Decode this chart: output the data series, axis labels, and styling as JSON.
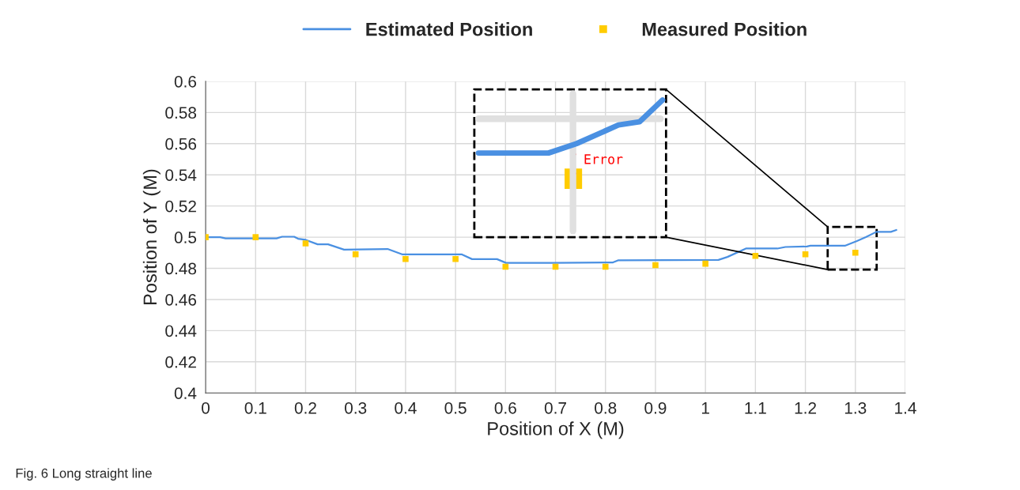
{
  "chart_data": {
    "type": "line",
    "xlabel": "Position of X (M)",
    "ylabel": "Position of Y (M)",
    "series": [
      {
        "name": "Estimated Position",
        "color": "#4a90e2",
        "marker": "none",
        "line_style": "solid",
        "x": [
          0,
          0.029,
          0.04,
          0.142,
          0.153,
          0.177,
          0.185,
          0.2,
          0.224,
          0.245,
          0.277,
          0.364,
          0.393,
          0.512,
          0.533,
          0.583,
          0.601,
          0.696,
          0.815,
          0.825,
          1.026,
          1.044,
          1.081,
          1.144,
          1.16,
          1.203,
          1.21,
          1.279,
          1.303,
          1.321,
          1.342,
          1.371,
          1.382
        ],
        "values": [
          0.5,
          0.5,
          0.4992,
          0.4992,
          0.5003,
          0.5003,
          0.499,
          0.4983,
          0.4954,
          0.4954,
          0.492,
          0.4924,
          0.489,
          0.489,
          0.4859,
          0.4859,
          0.4835,
          0.4835,
          0.4838,
          0.4851,
          0.4854,
          0.4873,
          0.4927,
          0.4927,
          0.4937,
          0.494,
          0.4945,
          0.4945,
          0.4975,
          0.5,
          0.5034,
          0.5034,
          0.5046
        ]
      },
      {
        "name": "Measured Position",
        "type": "scatter",
        "color": "#ffcc00",
        "marker": "square",
        "x": [
          0,
          0.1,
          0.2,
          0.3,
          0.4,
          0.5,
          0.6,
          0.7,
          0.8,
          0.9,
          1.0,
          1.1,
          1.2,
          1.3
        ],
        "values": [
          0.5,
          0.5,
          0.496,
          0.489,
          0.486,
          0.486,
          0.481,
          0.481,
          0.481,
          0.482,
          0.483,
          0.488,
          0.489,
          0.49
        ]
      }
    ],
    "xlim": [
      0,
      1.4
    ],
    "xticks": [
      0,
      0.1,
      0.2,
      0.3,
      0.4,
      0.5,
      0.6,
      0.7,
      0.8,
      0.9,
      1,
      1.1,
      1.2,
      1.3,
      1.4
    ],
    "ylim": [
      0.4,
      0.6
    ],
    "yticks": [
      0.4,
      0.42,
      0.44,
      0.46,
      0.48,
      0.5,
      0.52,
      0.54,
      0.56,
      0.58,
      0.6
    ],
    "grid": true,
    "legend": "top",
    "annotations": [
      "Error",
      "Fig. 6 Long straight line"
    ]
  }
}
